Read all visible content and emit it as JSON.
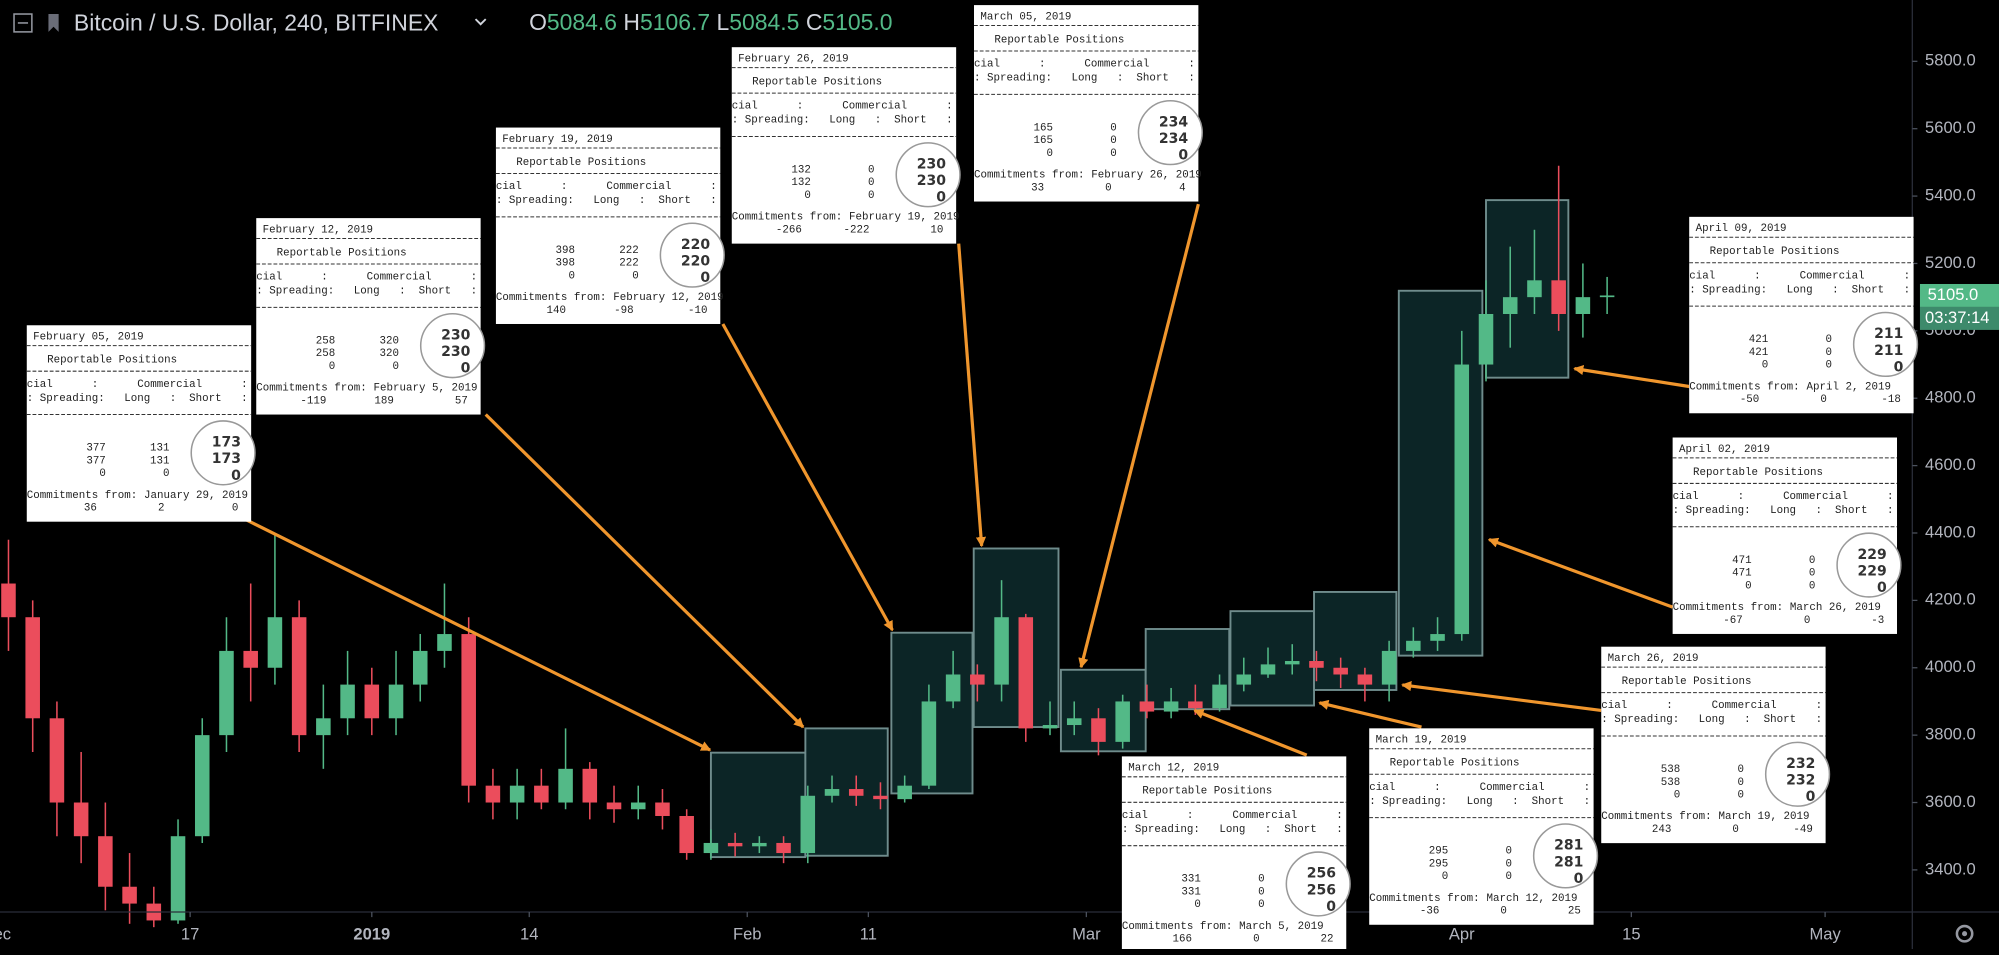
{
  "chart_data": {
    "type": "candlestick",
    "title": "Bitcoin / U.S. Dollar, 240, BITFINEX",
    "ohlc": [
      {
        "key": "O",
        "value": 5084.6
      },
      {
        "key": "H",
        "value": 5106.7
      },
      {
        "key": "L",
        "value": 5084.5
      },
      {
        "key": "C",
        "value": 5105,
        "label": "5105.0"
      }
    ],
    "last_price": {
      "value": 5105,
      "label": "5105.0"
    },
    "countdown": "03:37:14",
    "up_color": "#53b987",
    "down_color": "#eb4d5c",
    "xlim": [
      -30.7,
      127.2
    ],
    "ylim": [
      3275,
      5982
    ],
    "yticks": [
      {
        "value": 3400,
        "label": "3400.0"
      },
      {
        "value": 3600,
        "label": "3600.0"
      },
      {
        "value": 3800,
        "label": "3800.0"
      },
      {
        "value": 4000,
        "label": "4000.0"
      },
      {
        "value": 4200,
        "label": "4200.0"
      },
      {
        "value": 4400,
        "label": "4400.0"
      },
      {
        "value": 4600,
        "label": "4600.0"
      },
      {
        "value": 4800,
        "label": "4800.0"
      },
      {
        "value": 5000,
        "label": "5000.0"
      },
      {
        "value": 5200,
        "label": "5200.0"
      },
      {
        "value": 5400,
        "label": "5400.0"
      },
      {
        "value": 5600,
        "label": "5600.0"
      },
      {
        "value": 5800,
        "label": "5800.0"
      }
    ],
    "xticks": [
      {
        "value": -31,
        "label": "Dec"
      },
      {
        "value": -15,
        "label": "17"
      },
      {
        "value": 0,
        "label": "2019"
      },
      {
        "value": 13,
        "label": "14"
      },
      {
        "value": 31,
        "label": "Feb"
      },
      {
        "value": 41,
        "label": "11"
      },
      {
        "value": 59,
        "label": "Mar"
      },
      {
        "value": 90,
        "label": "Apr"
      },
      {
        "value": 104,
        "label": "15"
      },
      {
        "value": 120,
        "label": "May"
      }
    ],
    "x": [
      -30,
      -28,
      -26,
      -24,
      -22,
      -20,
      -18,
      -16,
      -14,
      -12,
      -10,
      -8,
      -6,
      -4,
      -2,
      0,
      2,
      4,
      6,
      8,
      10,
      12,
      14,
      16,
      18,
      20,
      22,
      24,
      26,
      28,
      30,
      32,
      34,
      36,
      38,
      40,
      42,
      44,
      46,
      48,
      50,
      52,
      54,
      56,
      58,
      60,
      62,
      64,
      66,
      68,
      70,
      72,
      74,
      76,
      78,
      80,
      82,
      84,
      86,
      88,
      90,
      92,
      94,
      96,
      98,
      100,
      102
    ],
    "open": [
      4250,
      4150,
      3850,
      3600,
      3500,
      3350,
      3300,
      3250,
      3500,
      3800,
      4050,
      4000,
      4150,
      3800,
      3850,
      3950,
      3850,
      3950,
      4050,
      4100,
      3650,
      3600,
      3650,
      3600,
      3700,
      3600,
      3580,
      3600,
      3560,
      3450,
      3480,
      3470,
      3480,
      3450,
      3620,
      3640,
      3620,
      3610,
      3650,
      3900,
      3980,
      3950,
      4150,
      3820,
      3830,
      3850,
      3780,
      3900,
      3870,
      3900,
      3880,
      3950,
      3980,
      4010,
      4020,
      4000,
      3980,
      3950,
      4050,
      4080,
      4100,
      4900,
      5050,
      5100,
      5150,
      5050,
      5100
    ],
    "high": [
      4380,
      4200,
      3900,
      3750,
      3600,
      3450,
      3350,
      3550,
      3850,
      4150,
      4250,
      4400,
      4200,
      3950,
      4050,
      4000,
      4050,
      4100,
      4250,
      4150,
      3700,
      3700,
      3700,
      3820,
      3720,
      3650,
      3650,
      3640,
      3580,
      3520,
      3510,
      3500,
      3500,
      3650,
      3680,
      3680,
      3660,
      3680,
      3950,
      4050,
      4010,
      4260,
      4160,
      3900,
      3900,
      3880,
      3920,
      3950,
      3940,
      3950,
      3980,
      4030,
      4060,
      4070,
      4050,
      4030,
      4000,
      4080,
      4120,
      4150,
      5000,
      5150,
      5250,
      5300,
      5490,
      5200,
      5160
    ],
    "low": [
      4050,
      3750,
      3500,
      3420,
      3280,
      3240,
      3230,
      3240,
      3480,
      3750,
      3900,
      3950,
      3750,
      3700,
      3800,
      3800,
      3800,
      3900,
      4000,
      3600,
      3550,
      3550,
      3580,
      3580,
      3550,
      3540,
      3550,
      3520,
      3430,
      3430,
      3440,
      3450,
      3420,
      3420,
      3600,
      3590,
      3580,
      3600,
      3640,
      3880,
      3900,
      3900,
      3780,
      3800,
      3800,
      3740,
      3760,
      3850,
      3850,
      3860,
      3870,
      3930,
      3970,
      3980,
      3960,
      3940,
      3900,
      3900,
      4030,
      4050,
      4080,
      4850,
      4950,
      5050,
      5000,
      4980,
      5050
    ],
    "close": [
      4150,
      3850,
      3600,
      3500,
      3350,
      3300,
      3250,
      3500,
      3800,
      4050,
      4000,
      4150,
      3800,
      3850,
      3950,
      3850,
      3950,
      4050,
      4100,
      3650,
      3600,
      3650,
      3600,
      3700,
      3600,
      3580,
      3600,
      3560,
      3450,
      3480,
      3470,
      3480,
      3450,
      3620,
      3640,
      3620,
      3610,
      3650,
      3900,
      3980,
      3950,
      4150,
      3820,
      3830,
      3850,
      3780,
      3900,
      3870,
      3900,
      3880,
      3950,
      3980,
      4010,
      4020,
      4000,
      3980,
      3950,
      4050,
      4080,
      4100,
      4900,
      5050,
      5100,
      5150,
      5050,
      5100,
      5105
    ],
    "highlight_boxes": [
      {
        "x": [
          28,
          35.8
        ],
        "y": [
          3438,
          3748
        ]
      },
      {
        "x": [
          35.8,
          42.6
        ],
        "y": [
          3442,
          3820
        ]
      },
      {
        "x": [
          42.9,
          49.6
        ],
        "y": [
          3627,
          4104
        ]
      },
      {
        "x": [
          49.7,
          56.7
        ],
        "y": [
          3824,
          4354
        ]
      },
      {
        "x": [
          56.9,
          63.9
        ],
        "y": [
          3752,
          3994
        ]
      },
      {
        "x": [
          63.9,
          70.8
        ],
        "y": [
          3877,
          4115
        ]
      },
      {
        "x": [
          70.9,
          77.8
        ],
        "y": [
          3888,
          4168
        ]
      },
      {
        "x": [
          77.8,
          84.6
        ],
        "y": [
          3934,
          4225
        ]
      },
      {
        "x": [
          84.8,
          91.7
        ],
        "y": [
          4036,
          5119
        ]
      },
      {
        "x": [
          92,
          98.8
        ],
        "y": [
          4861,
          5388
        ]
      }
    ],
    "box_fill": "#0c2526",
    "box_stroke": "#6f8c8c"
  },
  "report_labels": {
    "heading": "Reportable Positions",
    "column_header_1": "cial      :      Commercial      :",
    "column_header_2": ": Spreading:   Long   :  Short   :",
    "from_label": "Commitments from:"
  },
  "annotations": [
    {
      "date": "February 05, 2019",
      "rows": [
        [
          377,
          131
        ],
        [
          377,
          131
        ],
        [
          0,
          0
        ]
      ],
      "circled": [
        173,
        173,
        0
      ],
      "from": "January 29, 2019",
      "changes": [
        36,
        2,
        0
      ]
    },
    {
      "date": "February 12, 2019",
      "rows": [
        [
          258,
          320
        ],
        [
          258,
          320
        ],
        [
          0,
          0
        ]
      ],
      "circled": [
        230,
        230,
        0
      ],
      "from": "February 5, 2019",
      "changes": [
        -119,
        189,
        57
      ]
    },
    {
      "date": "February 19, 2019",
      "rows": [
        [
          398,
          222
        ],
        [
          398,
          222
        ],
        [
          0,
          0
        ]
      ],
      "circled": [
        220,
        220,
        0
      ],
      "from": "February 12, 2019",
      "changes": [
        140,
        -98,
        -10
      ]
    },
    {
      "date": "February 26, 2019",
      "rows": [
        [
          132,
          0
        ],
        [
          132,
          0
        ],
        [
          0,
          0
        ]
      ],
      "circled": [
        230,
        230,
        0
      ],
      "from": "February 19, 2019",
      "changes": [
        -266,
        -222,
        10
      ]
    },
    {
      "date": "March 05, 2019",
      "rows": [
        [
          165,
          0
        ],
        [
          165,
          0
        ],
        [
          0,
          0
        ]
      ],
      "circled": [
        234,
        234,
        0
      ],
      "from": "February 26, 2019",
      "changes": [
        33,
        0,
        4
      ]
    },
    {
      "date": "March 12, 2019",
      "rows": [
        [
          331,
          0
        ],
        [
          331,
          0
        ],
        [
          0,
          0
        ]
      ],
      "circled": [
        256,
        256,
        0
      ],
      "from": "March 5, 2019",
      "changes": [
        166,
        0,
        22
      ]
    },
    {
      "date": "March 19, 2019",
      "rows": [
        [
          295,
          0
        ],
        [
          295,
          0
        ],
        [
          0,
          0
        ]
      ],
      "circled": [
        281,
        281,
        0
      ],
      "from": "March 12, 2019",
      "changes": [
        -36,
        0,
        25
      ]
    },
    {
      "date": "March 26, 2019",
      "rows": [
        [
          538,
          0
        ],
        [
          538,
          0
        ],
        [
          0,
          0
        ]
      ],
      "circled": [
        232,
        232,
        0
      ],
      "from": "March 19, 2019",
      "changes": [
        243,
        0,
        -49
      ]
    },
    {
      "date": "April 02, 2019",
      "rows": [
        [
          471,
          0
        ],
        [
          471,
          0
        ],
        [
          0,
          0
        ]
      ],
      "circled": [
        229,
        229,
        0
      ],
      "from": "March 26, 2019",
      "changes": [
        -67,
        0,
        -3
      ]
    },
    {
      "date": "April 09, 2019",
      "rows": [
        [
          421,
          0
        ],
        [
          421,
          0
        ],
        [
          0,
          0
        ]
      ],
      "circled": [
        211,
        211,
        0
      ],
      "from": "April 2, 2019",
      "changes": [
        -50,
        0,
        -18
      ]
    }
  ]
}
